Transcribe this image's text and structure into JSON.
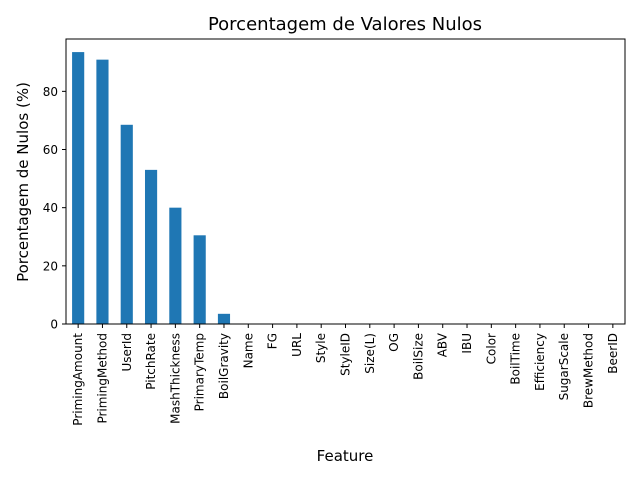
{
  "chart_data": {
    "type": "bar",
    "title": "Porcentagem de Valores Nulos",
    "xlabel": "Feature",
    "ylabel": "Porcentagem de Nulos (%)",
    "ylim": [
      0,
      98
    ],
    "yticks": [
      0,
      20,
      40,
      60,
      80
    ],
    "grid": false,
    "legend": "none",
    "bar_color": "#1f77b4",
    "categories": [
      "PrimingAmount",
      "PrimingMethod",
      "UserId",
      "PitchRate",
      "MashThickness",
      "PrimaryTemp",
      "BoilGravity",
      "Name",
      "FG",
      "URL",
      "Style",
      "StyleID",
      "Size(L)",
      "OG",
      "BoilSize",
      "ABV",
      "IBU",
      "Color",
      "BoilTime",
      "Efficiency",
      "SugarScale",
      "BrewMethod",
      "BeerID"
    ],
    "values": [
      93.5,
      90.9,
      68.5,
      53.0,
      40.0,
      30.5,
      3.5,
      0,
      0,
      0,
      0,
      0,
      0,
      0,
      0,
      0,
      0,
      0,
      0,
      0,
      0,
      0,
      0
    ]
  }
}
